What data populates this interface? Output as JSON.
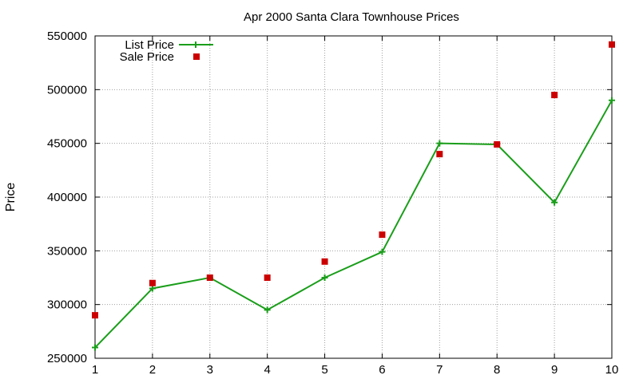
{
  "chart_data": {
    "type": "line",
    "title": "Apr 2000 Santa Clara Townhouse Prices",
    "xlabel": "",
    "ylabel": "Price",
    "x": [
      1,
      2,
      3,
      4,
      5,
      6,
      7,
      8,
      9,
      10
    ],
    "xlim": [
      1,
      10
    ],
    "ylim": [
      250000,
      550000
    ],
    "xticks": [
      "1",
      "2",
      "3",
      "4",
      "5",
      "6",
      "7",
      "8",
      "9",
      "10"
    ],
    "yticks": [
      "250000",
      "300000",
      "350000",
      "400000",
      "450000",
      "500000",
      "550000"
    ],
    "grid": true,
    "legend_position": "top-left",
    "series": [
      {
        "name": "List Price",
        "style": "line-with-plus-markers",
        "color": "#1a9e1a",
        "values": [
          260000,
          315000,
          325000,
          295000,
          325000,
          349000,
          450000,
          449000,
          395000,
          490000
        ]
      },
      {
        "name": "Sale Price",
        "style": "square-markers",
        "color": "#cc0000",
        "values": [
          290000,
          320000,
          325000,
          325000,
          340000,
          365000,
          440000,
          449000,
          495000,
          542000
        ]
      }
    ]
  }
}
